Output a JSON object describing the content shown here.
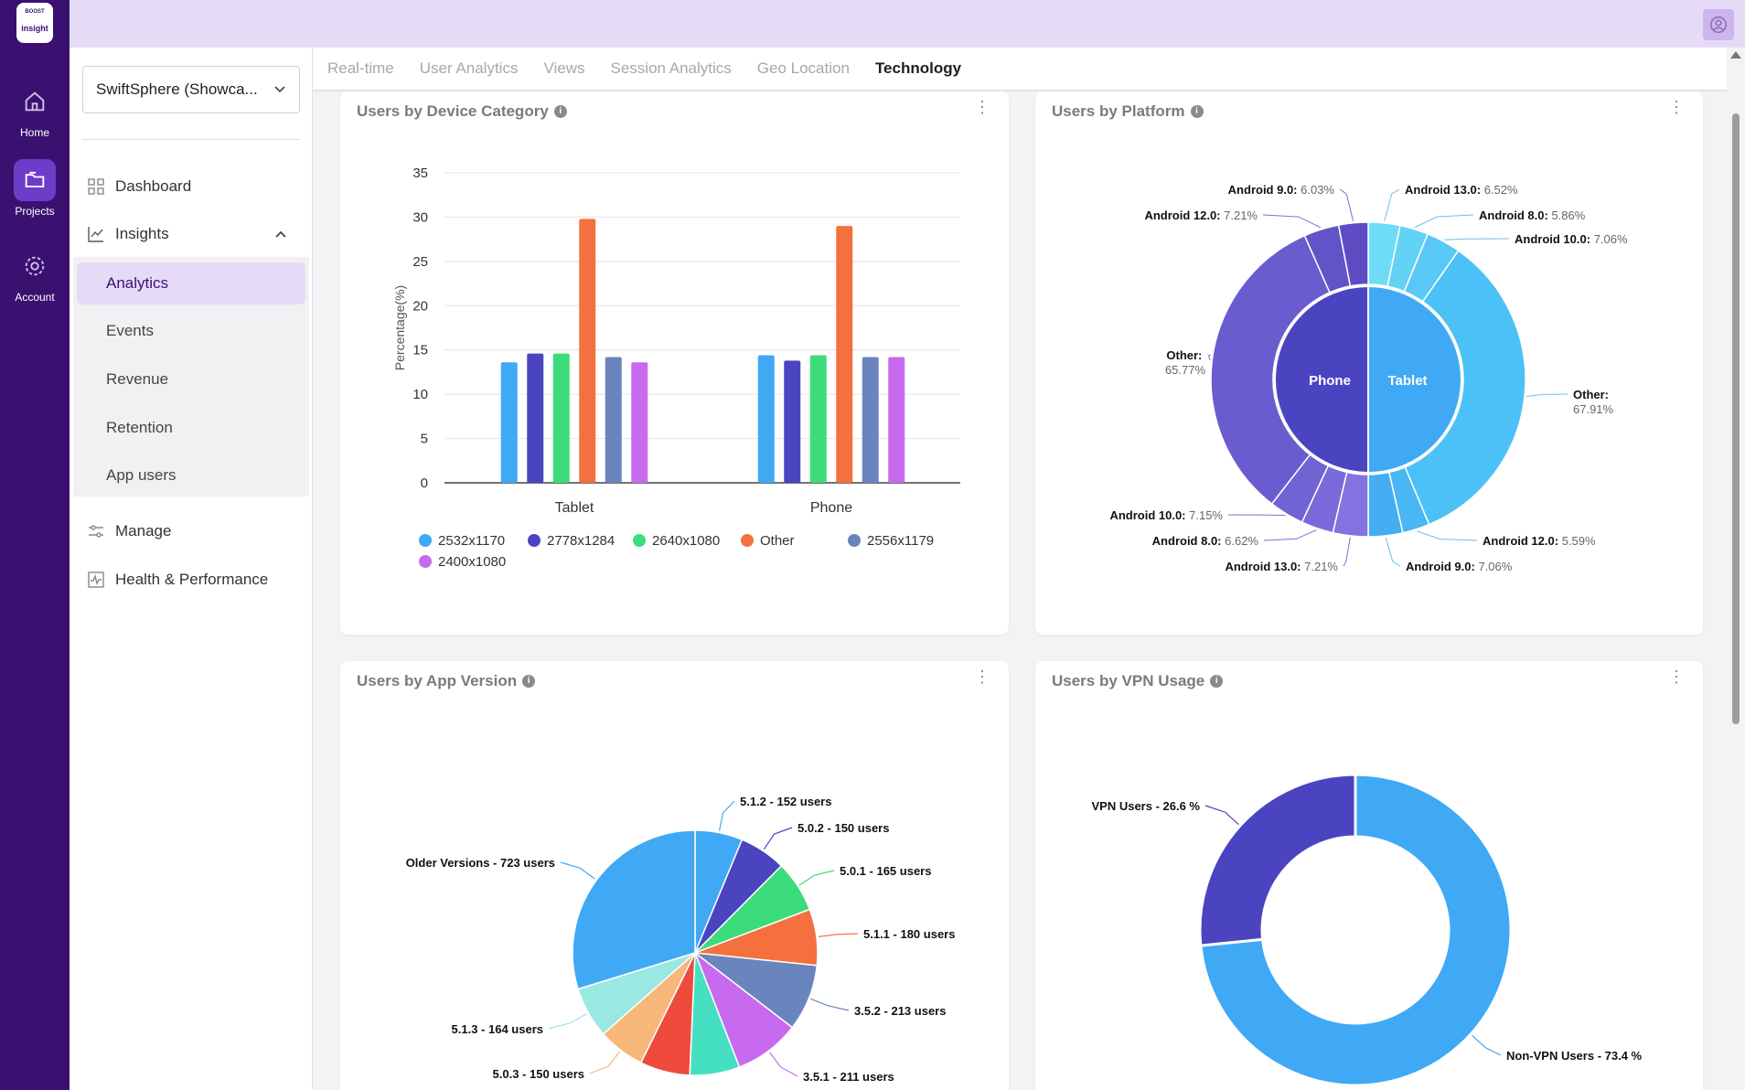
{
  "rail": {
    "logo_top": "BOOST",
    "logo_text": "insight",
    "items": [
      {
        "label": "Home",
        "icon": "home-icon"
      },
      {
        "label": "Projects",
        "icon": "folder-icon"
      },
      {
        "label": "Account",
        "icon": "gear-icon"
      }
    ]
  },
  "project_select": {
    "value": "SwiftSphere (Showca..."
  },
  "nav": {
    "dashboard": "Dashboard",
    "insights": "Insights",
    "sub": [
      "Analytics",
      "Events",
      "Revenue",
      "Retention",
      "App users"
    ],
    "manage": "Manage",
    "health": "Health & Performance"
  },
  "tabs": [
    "Real-time",
    "User Analytics",
    "Views",
    "Session Analytics",
    "Geo Location",
    "Technology"
  ],
  "cards": {
    "device": "Users by Device Category",
    "platform": "Users by Platform",
    "app_version": "Users by App Version",
    "vpn": "Users by VPN Usage"
  },
  "colors": {
    "blue": "#3fa9f5",
    "indigo": "#4b44c0",
    "green": "#3ddc7a",
    "orange": "#f5703f",
    "slate": "#6a85bd",
    "violet": "#c86af0",
    "teal": "#45e0c2",
    "red": "#ee4b3d",
    "peach": "#f7b77a",
    "aqua": "#9ae8e2",
    "rail": "#3a1170"
  },
  "chart_data": [
    {
      "type": "bar",
      "ylabel": "Percentage(%)",
      "ylim": [
        0,
        35
      ],
      "yticks": [
        0,
        5,
        10,
        15,
        20,
        25,
        30,
        35
      ],
      "categories": [
        "Tablet",
        "Phone"
      ],
      "series": [
        {
          "name": "2532x1170",
          "color": "#3fa9f5",
          "values": [
            13.6,
            14.4
          ]
        },
        {
          "name": "2778x1284",
          "color": "#4b44c0",
          "values": [
            14.6,
            13.8
          ]
        },
        {
          "name": "2640x1080",
          "color": "#3ddc7a",
          "values": [
            14.6,
            14.4
          ]
        },
        {
          "name": "Other",
          "color": "#f5703f",
          "values": [
            29.8,
            29.0
          ]
        },
        {
          "name": "2556x1179",
          "color": "#6a85bd",
          "values": [
            14.2,
            14.2
          ]
        },
        {
          "name": "2400x1080",
          "color": "#c86af0",
          "values": [
            13.6,
            14.2
          ]
        }
      ],
      "grid": true,
      "legend": "bottom"
    },
    {
      "type": "pie",
      "inner": [
        {
          "label": "Phone",
          "value": 50,
          "color": "#4b44c0"
        },
        {
          "label": "Tablet",
          "value": 50,
          "color": "#3fa9f5"
        }
      ],
      "outer_tablet": [
        {
          "name": "Android 13.0:",
          "pct": "6.52%",
          "value": 6.52
        },
        {
          "name": "Android 8.0:",
          "pct": "5.86%",
          "value": 5.86
        },
        {
          "name": "Android 10.0:",
          "pct": "7.06%",
          "value": 7.06
        },
        {
          "name": "Other:",
          "pct": "67.91%",
          "value": 67.91
        },
        {
          "name": "Android 12.0:",
          "pct": "5.59%",
          "value": 5.59
        },
        {
          "name": "Android 9.0:",
          "pct": "7.06%",
          "value": 7.06
        }
      ],
      "outer_phone": [
        {
          "name": "Android 13.0:",
          "pct": "7.21%",
          "value": 7.21
        },
        {
          "name": "Android 8.0:",
          "pct": "6.62%",
          "value": 6.62
        },
        {
          "name": "Android 10.0:",
          "pct": "7.15%",
          "value": 7.15
        },
        {
          "name": "Other:",
          "pct": "65.77%",
          "value": 65.77
        },
        {
          "name": "Android 12.0:",
          "pct": "7.21%",
          "value": 7.21
        },
        {
          "name": "Android 9.0:",
          "pct": "6.03%",
          "value": 6.03
        }
      ]
    },
    {
      "type": "pie",
      "slices": [
        {
          "label": "5.1.2 - 152 users",
          "value": 152,
          "color": "#3fa9f5"
        },
        {
          "label": "5.0.2 - 150 users",
          "value": 150,
          "color": "#4b44c0"
        },
        {
          "label": "5.0.1 - 165 users",
          "value": 165,
          "color": "#3ddc7a"
        },
        {
          "label": "5.1.1 - 180 users",
          "value": 180,
          "color": "#f5703f"
        },
        {
          "label": "3.5.2 - 213 users",
          "value": 213,
          "color": "#6a85bd"
        },
        {
          "label": "3.5.1 - 211 users",
          "value": 211,
          "color": "#c86af0"
        },
        {
          "label": "",
          "value": 160,
          "color": "#45e0c2"
        },
        {
          "label": "",
          "value": 160,
          "color": "#ee4b3d"
        },
        {
          "label": "5.0.3 - 150 users",
          "value": 150,
          "color": "#f7b77a"
        },
        {
          "label": "5.1.3 - 164 users",
          "value": 164,
          "color": "#9ae8e2"
        },
        {
          "label": "Older Versions - 723 users",
          "value": 723,
          "color": "#3fa9f5"
        }
      ]
    },
    {
      "type": "pie",
      "donut": true,
      "slices": [
        {
          "label": "Non-VPN Users - 73.4 %",
          "value": 73.4,
          "color": "#3fa9f5"
        },
        {
          "label": "VPN Users - 26.6 %",
          "value": 26.6,
          "color": "#4b44c0"
        }
      ]
    }
  ]
}
